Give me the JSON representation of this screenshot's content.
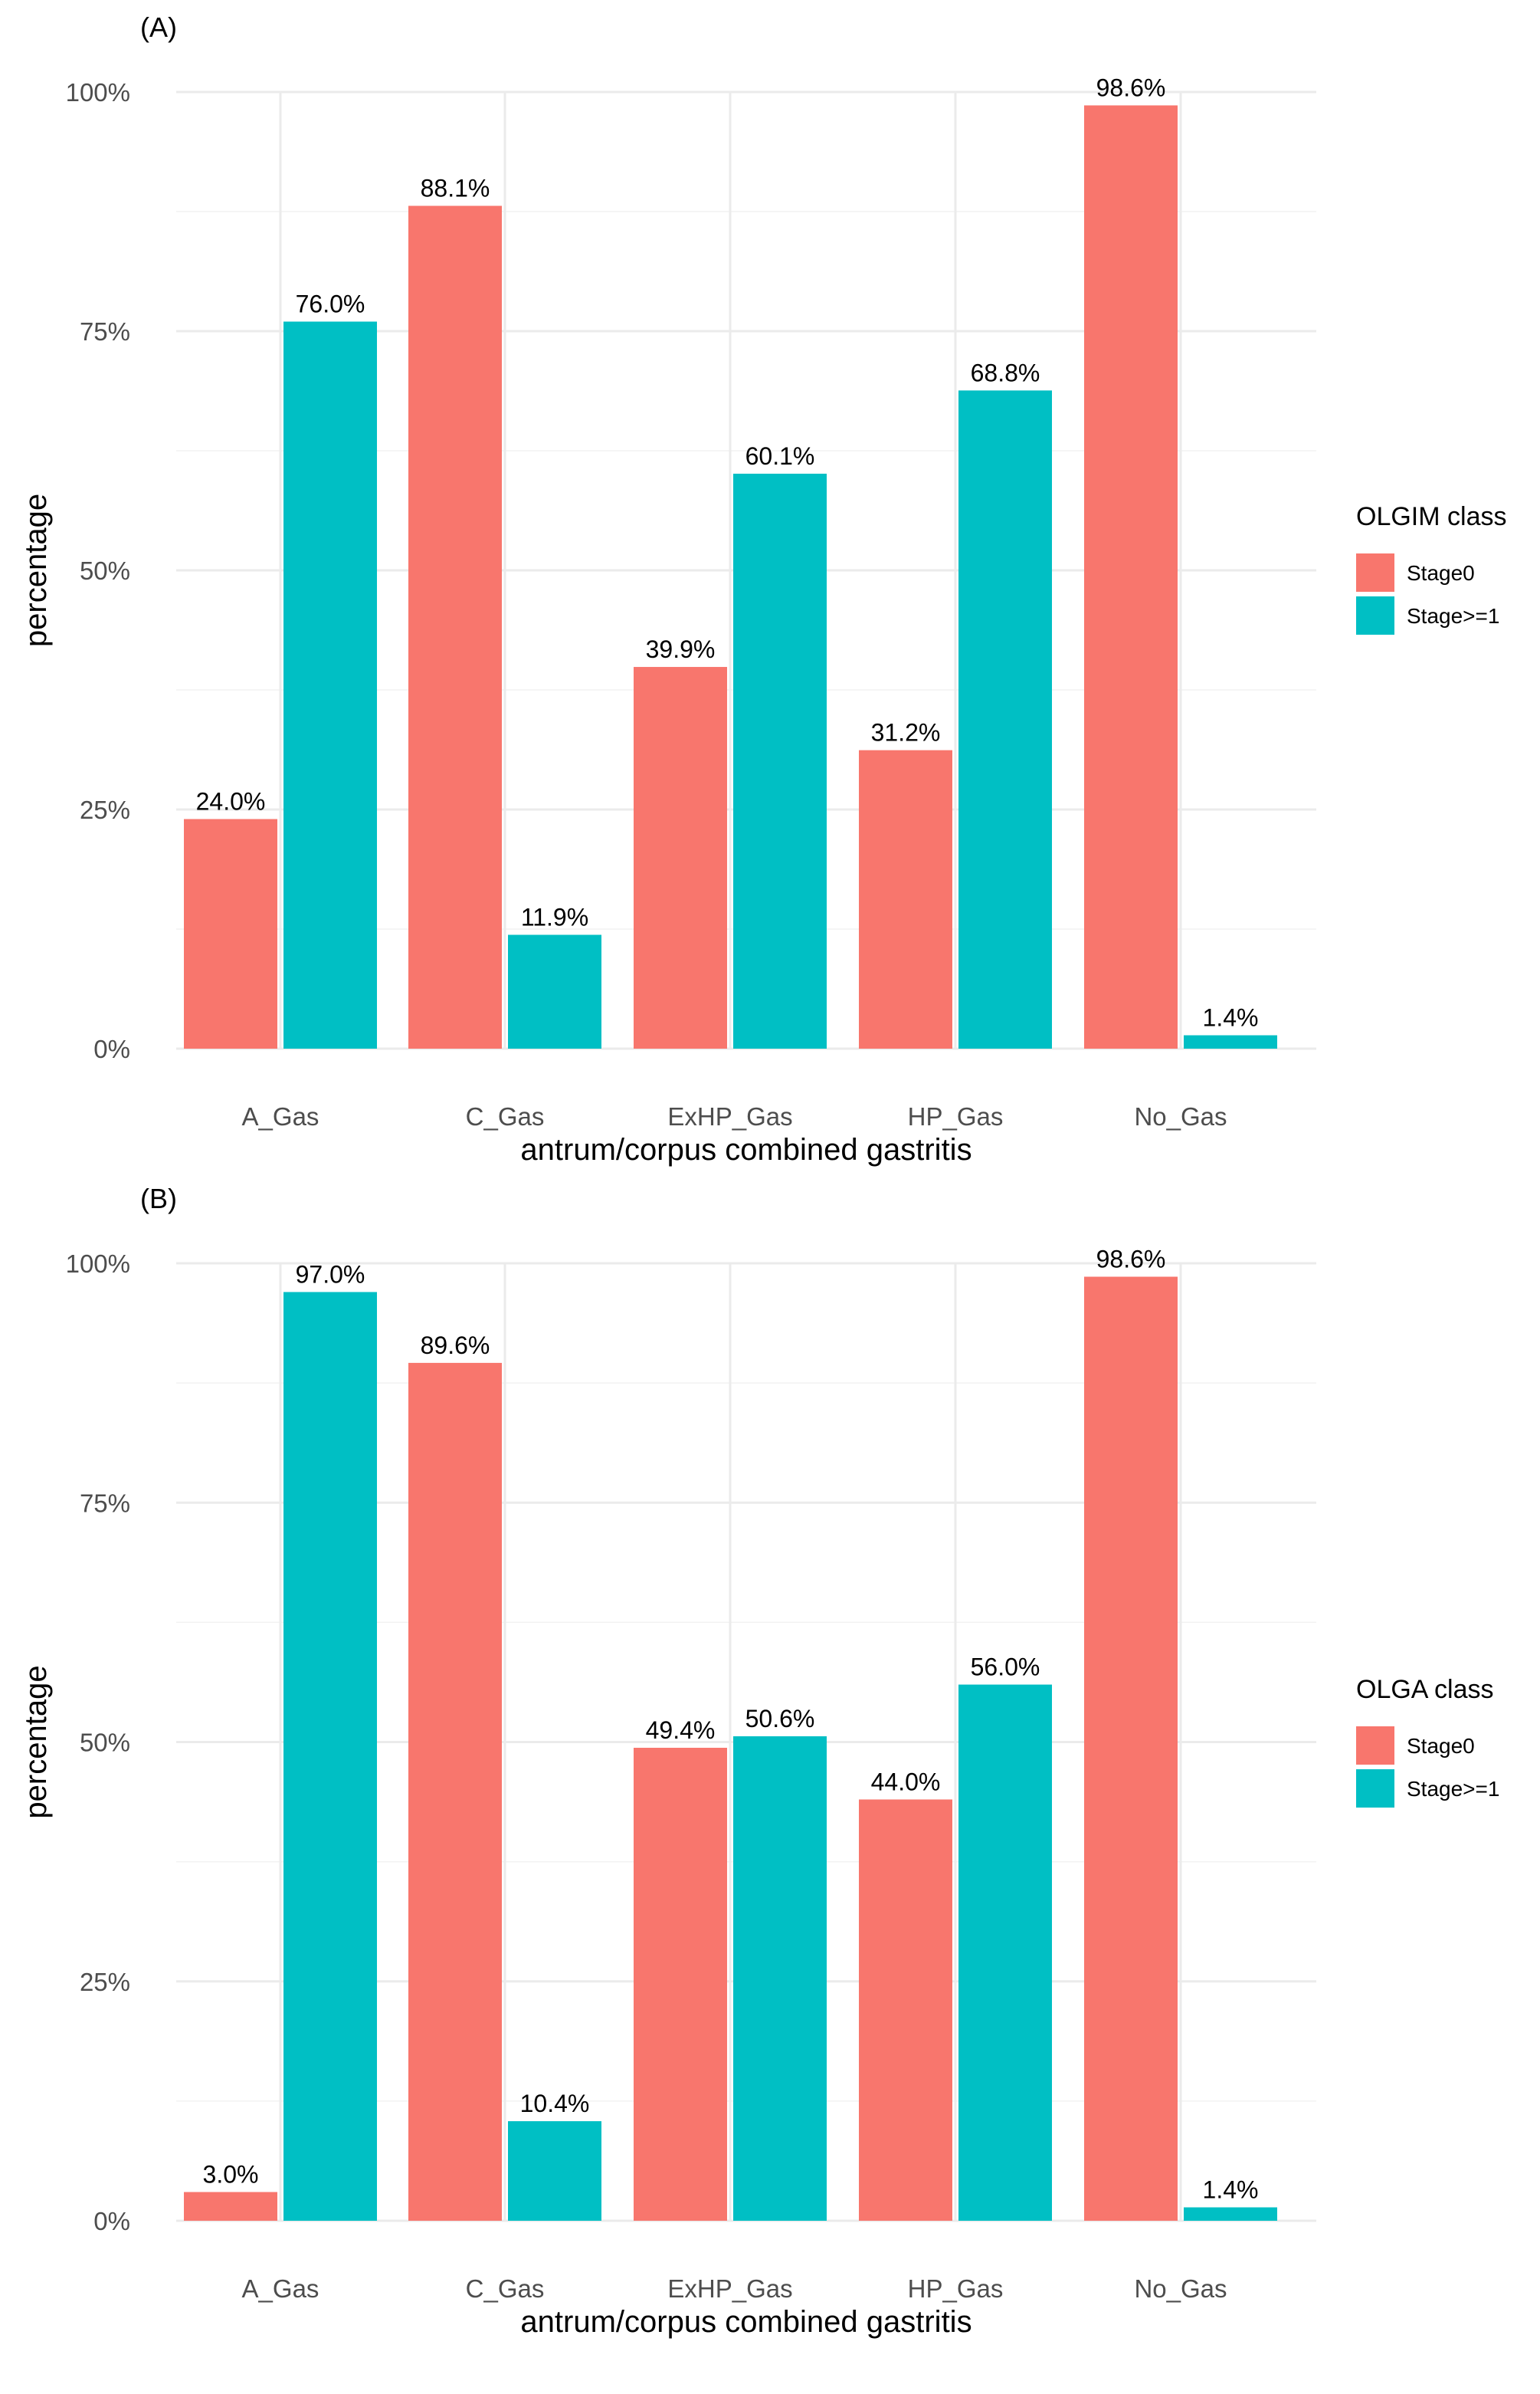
{
  "chart_data": [
    {
      "type": "bar",
      "panel_label": "(A)",
      "categories": [
        "A_Gas",
        "C_Gas",
        "ExHP_Gas",
        "HP_Gas",
        "No_Gas"
      ],
      "series": [
        {
          "name": "Stage0",
          "values": [
            24.0,
            88.1,
            39.9,
            31.2,
            98.6
          ],
          "labels": [
            "24.0%",
            "88.1%",
            "39.9%",
            "31.2%",
            "98.6%"
          ]
        },
        {
          "name": "Stage>=1",
          "values": [
            76.0,
            11.9,
            60.1,
            68.8,
            1.4
          ],
          "labels": [
            "76.0%",
            "11.9%",
            "60.1%",
            "68.8%",
            "1.4%"
          ]
        }
      ],
      "xlabel": "antrum/corpus combined gastritis",
      "ylabel": "percentage",
      "ylim": [
        0,
        100
      ],
      "yticks": [
        0,
        25,
        50,
        75,
        100
      ],
      "ytick_labels": [
        "0%",
        "25%",
        "50%",
        "75%",
        "100%"
      ],
      "grid": true,
      "legend": {
        "title": "OLGIM class",
        "placement": "right",
        "entries": [
          "Stage0",
          "Stage>=1"
        ]
      }
    },
    {
      "type": "bar",
      "panel_label": "(B)",
      "categories": [
        "A_Gas",
        "C_Gas",
        "ExHP_Gas",
        "HP_Gas",
        "No_Gas"
      ],
      "series": [
        {
          "name": "Stage0",
          "values": [
            3.0,
            89.6,
            49.4,
            44.0,
            98.6
          ],
          "labels": [
            "3.0%",
            "89.6%",
            "49.4%",
            "44.0%",
            "98.6%"
          ]
        },
        {
          "name": "Stage>=1",
          "values": [
            97.0,
            10.4,
            50.6,
            56.0,
            1.4
          ],
          "labels": [
            "97.0%",
            "10.4%",
            "50.6%",
            "56.0%",
            "1.4%"
          ]
        }
      ],
      "xlabel": "antrum/corpus combined gastritis",
      "ylabel": "percentage",
      "ylim": [
        0,
        100
      ],
      "yticks": [
        0,
        25,
        50,
        75,
        100
      ],
      "ytick_labels": [
        "0%",
        "25%",
        "50%",
        "75%",
        "100%"
      ],
      "grid": true,
      "legend": {
        "title": "OLGA class",
        "placement": "right",
        "entries": [
          "Stage0",
          "Stage>=1"
        ]
      }
    }
  ],
  "colors": {
    "Stage0": "#F8766D",
    "Stage>=1": "#00BFC4"
  }
}
